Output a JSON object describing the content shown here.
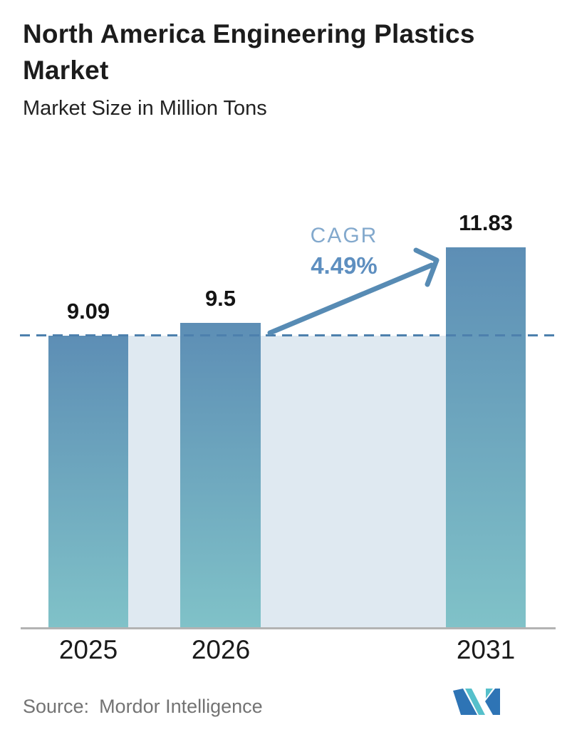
{
  "chart_data": {
    "type": "bar",
    "title": "North America Engineering Plastics Market",
    "subtitle": "Market Size in Million Tons",
    "unit": "Million Tons",
    "categories": [
      "2025",
      "2026",
      "2031"
    ],
    "values": [
      9.09,
      9.5,
      11.83
    ],
    "value_labels": [
      "9.09",
      "9.5",
      "11.83"
    ],
    "reference_line": 9.09,
    "annotation": {
      "label": "CAGR",
      "value": "4.49%"
    },
    "xlabel": "",
    "ylabel": "",
    "ylim": [
      0,
      12.5
    ],
    "grid": false,
    "legend": false,
    "y_axis_visible": false
  },
  "footer": {
    "source_label": "Source:",
    "source_name": "Mordor Intelligence",
    "logo": "mordor-intelligence-logo"
  },
  "colors": {
    "ink": "#1c1c1c",
    "bar_top": "#5d8eb5",
    "bar_bottom": "#80c2c8",
    "band": "#dfe9f1",
    "dash": "#4d80ad",
    "arrow": "#578bb4",
    "axis": "#b3b3b3",
    "cagr_label": "#83a9cd",
    "cagr_value": "#5e8fc0",
    "source_text": "#737373",
    "logo_blue": "#2e74b5",
    "logo_teal": "#56c0cb"
  }
}
